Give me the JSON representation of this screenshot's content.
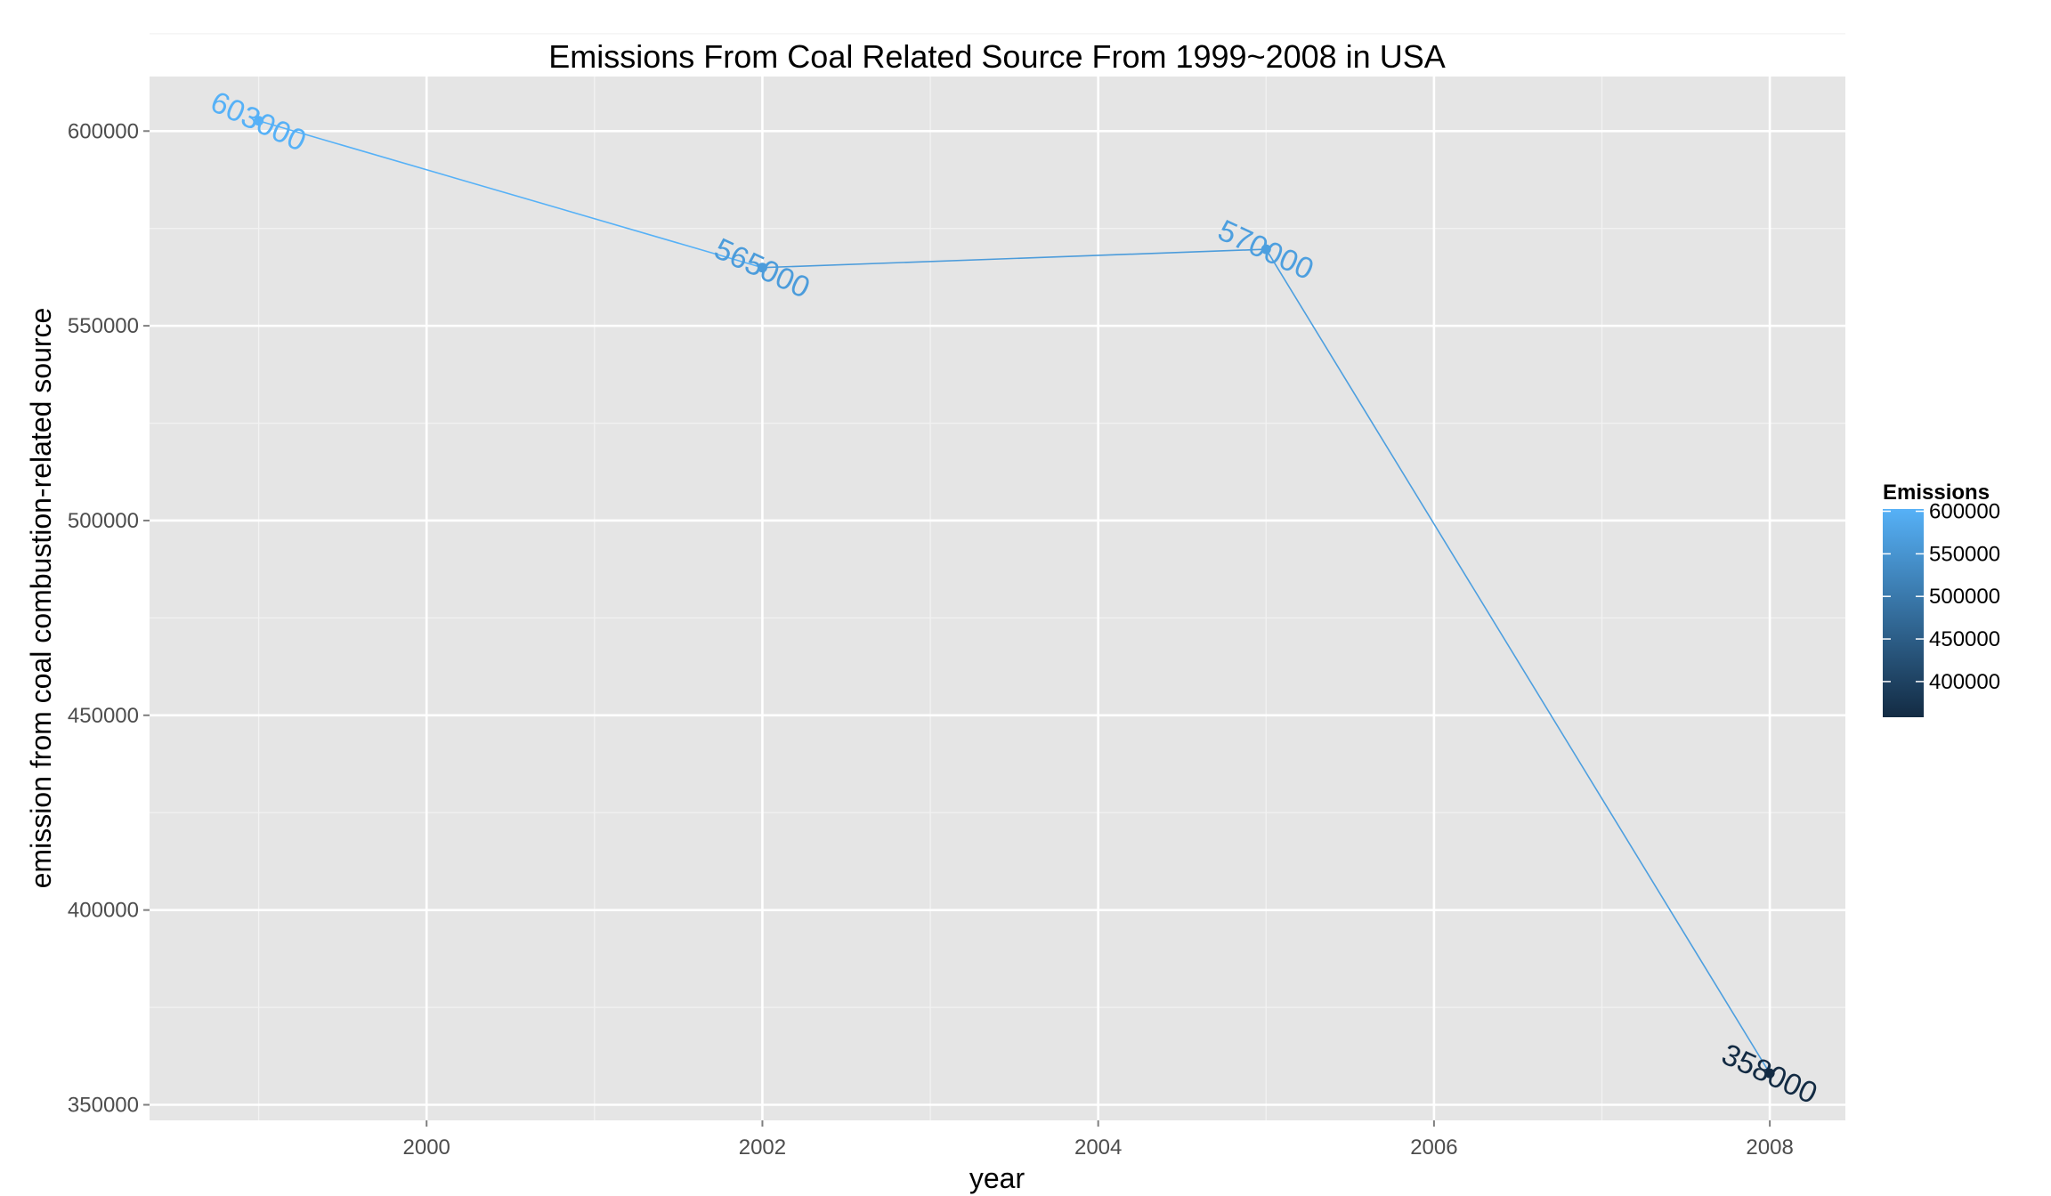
{
  "chart_data": {
    "type": "line",
    "title": "Emissions From Coal Related Source From 1999~2008 in USA",
    "xlabel": "year",
    "ylabel": "emission from coal combustion-related source",
    "xlim": [
      1998.35,
      2008.45
    ],
    "ylim": [
      346000,
      614000
    ],
    "x_ticks": [
      2000,
      2002,
      2004,
      2006,
      2008
    ],
    "y_ticks": [
      350000,
      400000,
      450000,
      500000,
      550000,
      600000
    ],
    "x": [
      1999,
      2002,
      2005,
      2008
    ],
    "values": [
      602624,
      564940,
      569654,
      358084
    ],
    "data_labels": [
      "603000",
      "565000",
      "570000",
      "358000"
    ],
    "grid": true,
    "panel_background": "#e5e5e5",
    "legend": {
      "title": "Emissions",
      "placement": "right",
      "labels": [
        "600000",
        "550000",
        "500000",
        "450000",
        "400000"
      ],
      "breaks": [
        600000,
        550000,
        500000,
        450000,
        400000
      ],
      "range": [
        358084,
        602624
      ],
      "color_low": "#132b43",
      "color_high": "#56b1f7"
    }
  }
}
